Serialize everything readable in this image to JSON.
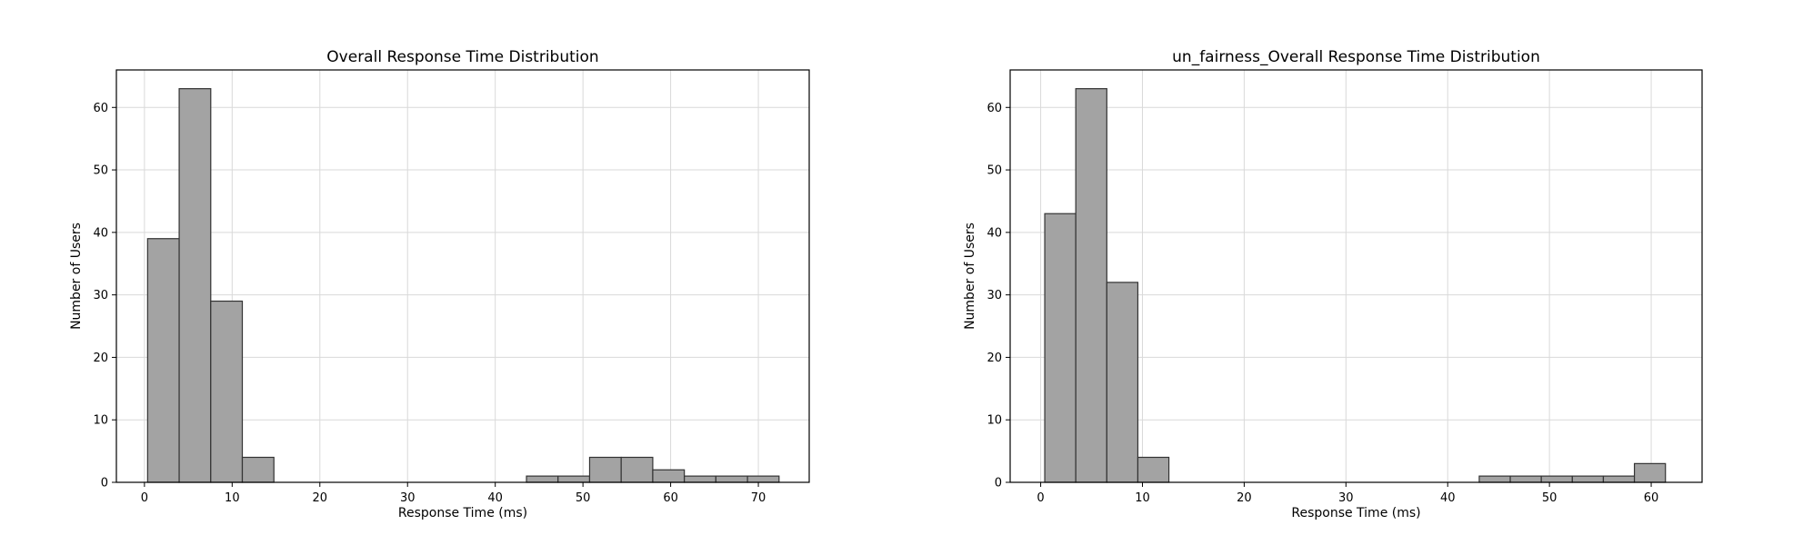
{
  "chart_data": [
    {
      "type": "bar",
      "title": "Overall Response Time Distribution",
      "xlabel": "Response Time (ms)",
      "ylabel": "Number of Users",
      "xlim": [
        -3.2,
        75.8
      ],
      "ylim": [
        0,
        66
      ],
      "xticks": [
        0,
        10,
        20,
        30,
        40,
        50,
        60,
        70
      ],
      "yticks": [
        0,
        10,
        20,
        30,
        40,
        50,
        60
      ],
      "grid": true,
      "bin_edges": [
        0.36,
        3.96,
        7.56,
        11.16,
        14.76,
        18.36,
        21.96,
        25.56,
        29.16,
        32.76,
        36.36,
        39.96,
        43.56,
        47.16,
        50.76,
        54.36,
        57.96,
        61.56,
        65.16,
        68.76,
        72.36
      ],
      "values": [
        39,
        63,
        29,
        4,
        0,
        0,
        0,
        0,
        0,
        0,
        0,
        0,
        1,
        1,
        4,
        4,
        2,
        1,
        1,
        1
      ]
    },
    {
      "type": "bar",
      "title": "un_fairness_Overall Response Time Distribution",
      "xlabel": "Response Time (ms)",
      "ylabel": "Number of Users",
      "xlim": [
        -3.0,
        65.0
      ],
      "ylim": [
        0,
        66
      ],
      "xticks": [
        0,
        10,
        20,
        30,
        40,
        50,
        60
      ],
      "yticks": [
        0,
        10,
        20,
        30,
        40,
        50,
        60
      ],
      "grid": true,
      "bin_edges": [
        0.4,
        3.45,
        6.5,
        9.55,
        12.6,
        15.65,
        18.7,
        21.75,
        24.8,
        27.85,
        30.9,
        33.95,
        37.0,
        40.05,
        43.1,
        46.15,
        49.2,
        52.25,
        55.3,
        58.35,
        61.4
      ],
      "values": [
        43,
        63,
        32,
        4,
        0,
        0,
        0,
        0,
        0,
        0,
        0,
        0,
        0,
        0,
        1,
        1,
        1,
        1,
        1,
        3
      ]
    }
  ]
}
